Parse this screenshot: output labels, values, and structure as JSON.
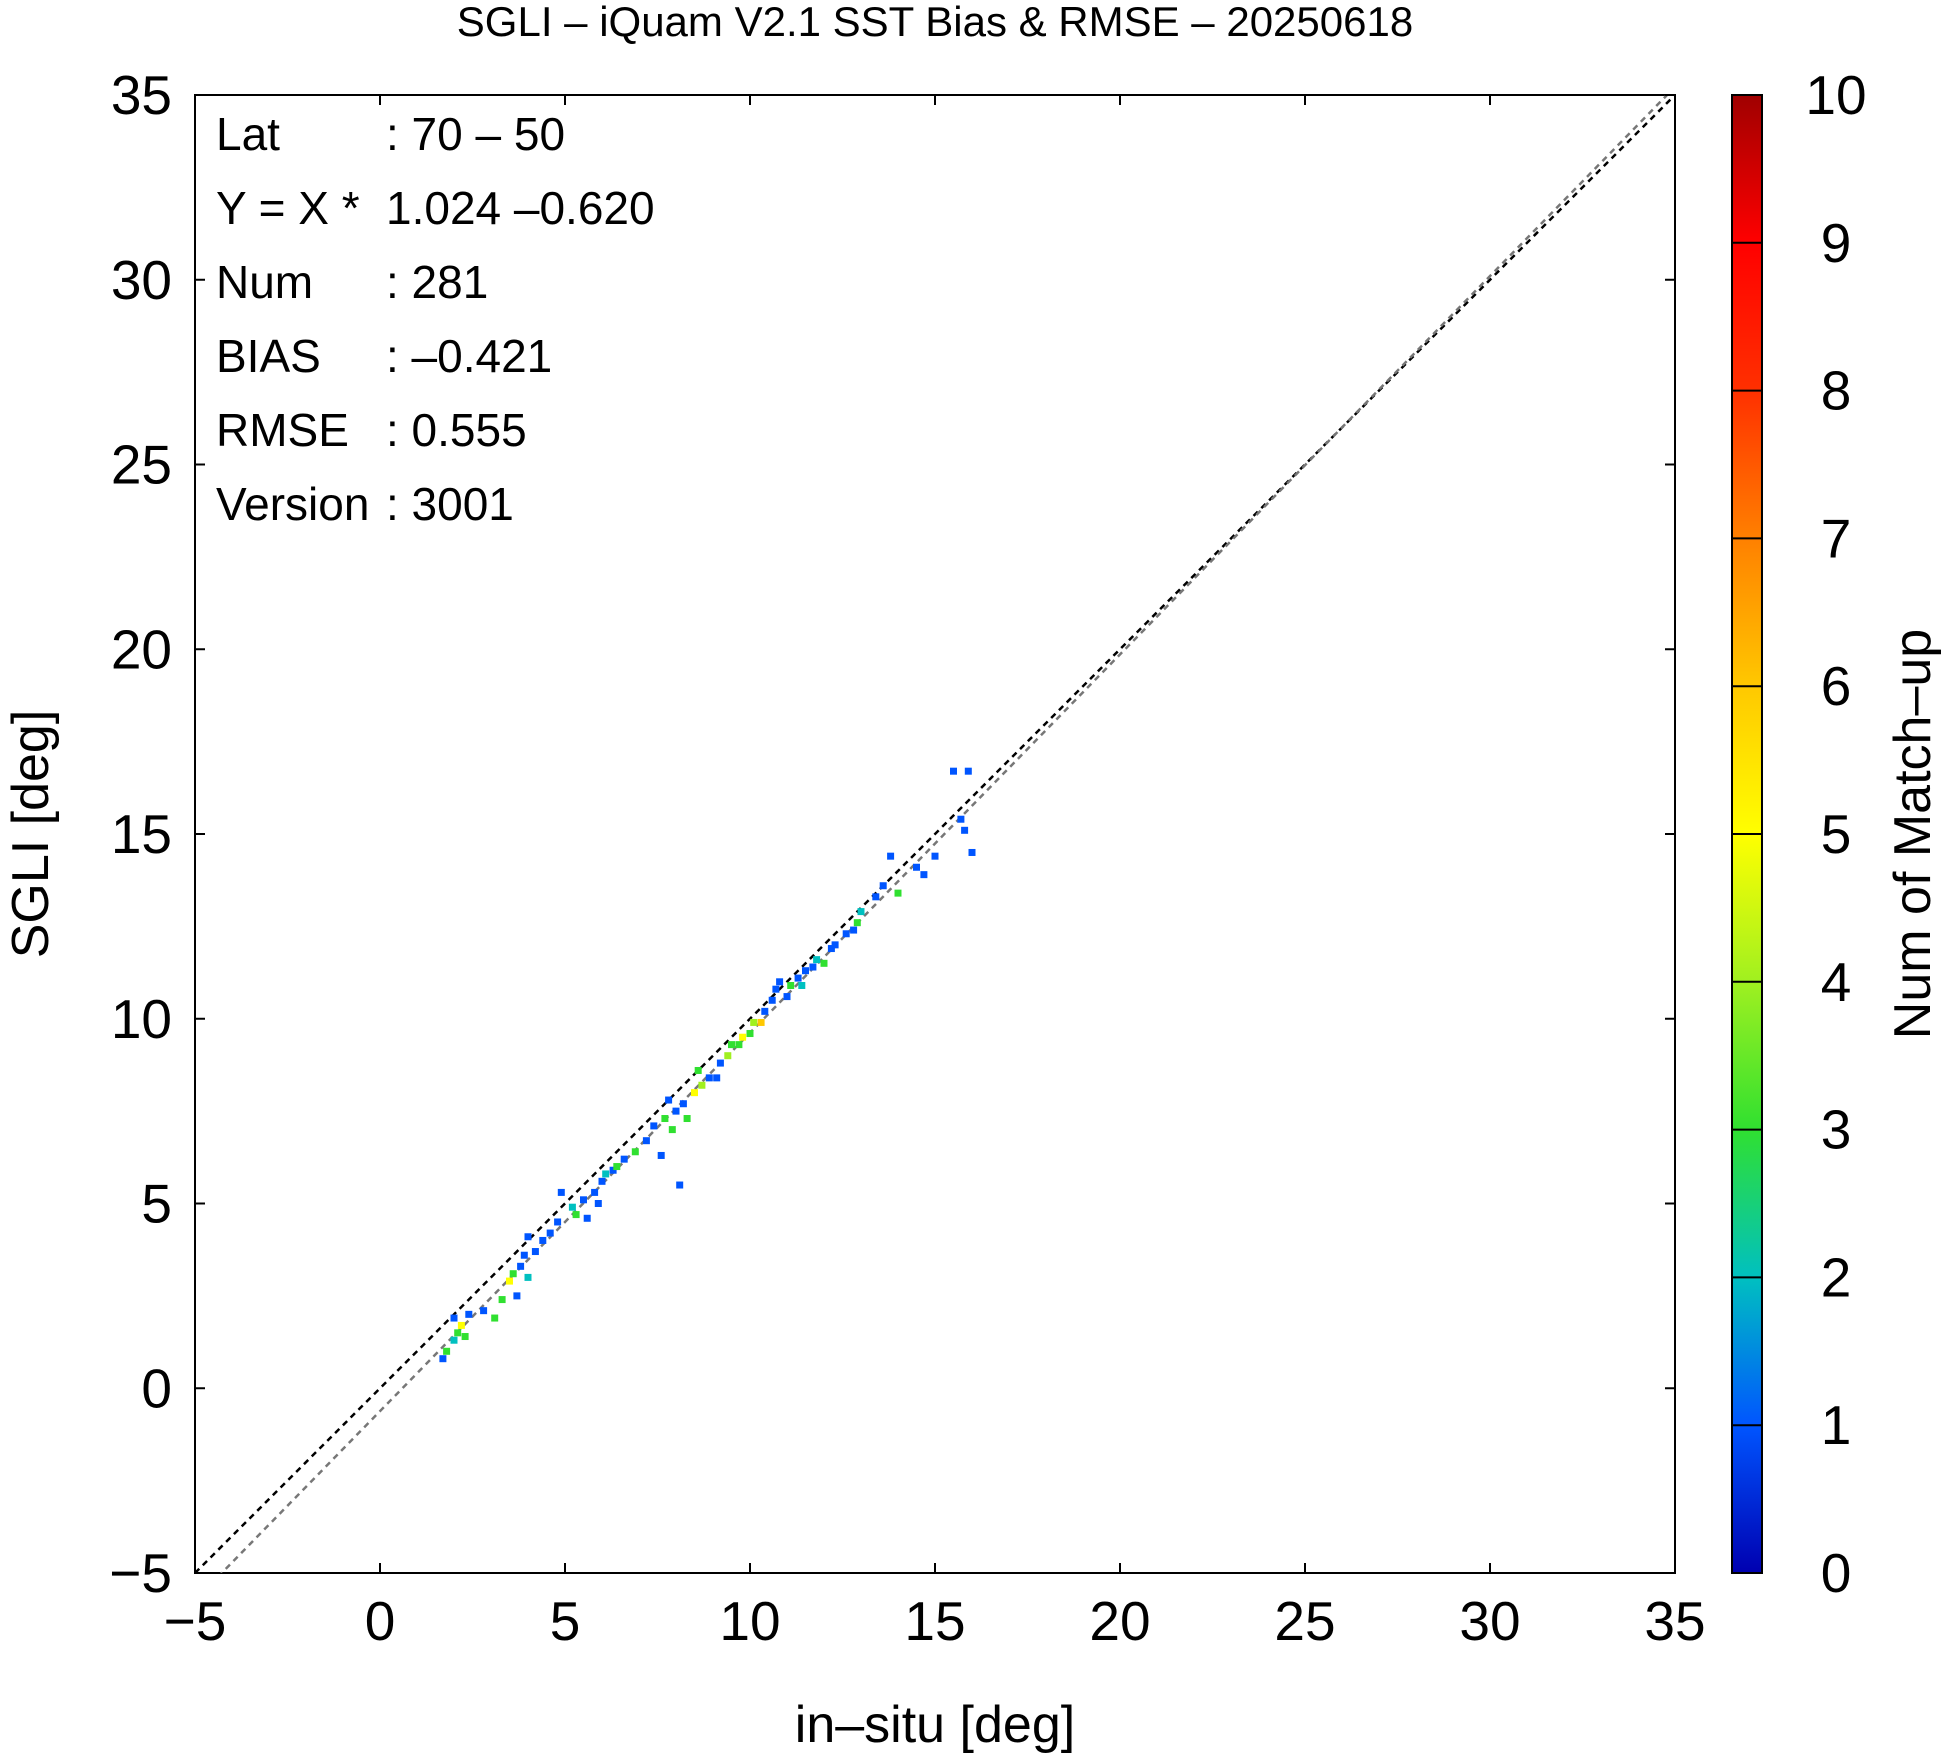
{
  "chart_data": {
    "type": "heatmap",
    "title": "SGLI – iQuam V2.1 SST Bias & RMSE  – 20250618",
    "xlabel": "in–situ [deg]",
    "ylabel": "SGLI [deg]",
    "xlim": [
      -5,
      35
    ],
    "ylim": [
      -5,
      35
    ],
    "xticks": [
      "−5",
      "0",
      "5",
      "10",
      "15",
      "20",
      "25",
      "30",
      "35"
    ],
    "yticks": [
      "−5",
      "0",
      "5",
      "10",
      "15",
      "20",
      "25",
      "30",
      "35"
    ],
    "grid": false,
    "colorbar": {
      "label": "Num of Match–up",
      "range": [
        0,
        10
      ],
      "ticks": [
        "0",
        "1",
        "2",
        "3",
        "4",
        "5",
        "6",
        "7",
        "8",
        "9",
        "10"
      ],
      "colors": [
        "#0000b0",
        "#0055ff",
        "#00c0c0",
        "#30e030",
        "#a0f020",
        "#ffff00",
        "#ffc800",
        "#ff8000",
        "#ff3000",
        "#ff0000",
        "#a00000"
      ]
    },
    "stats": [
      {
        "label": "Lat",
        "value": ": 70 – 50"
      },
      {
        "label": "Y = X *",
        "value": "1.024 –0.620"
      },
      {
        "label": "Num",
        "value": ": 281"
      },
      {
        "label": "BIAS",
        "value": ": –0.421"
      },
      {
        "label": "RMSE",
        "value": ": 0.555"
      },
      {
        "label": "Version",
        "value": ": 3001"
      }
    ],
    "lines": [
      {
        "kind": "one-to-one",
        "slope": 1,
        "intercept": 0,
        "color": "#000000"
      },
      {
        "kind": "regression",
        "slope": 1.024,
        "intercept": -0.62,
        "color": "#777777"
      }
    ],
    "points": [
      [
        1.7,
        0.8,
        1
      ],
      [
        1.8,
        1.0,
        3
      ],
      [
        2.0,
        1.3,
        2
      ],
      [
        2.0,
        1.9,
        1
      ],
      [
        2.1,
        1.5,
        3
      ],
      [
        2.2,
        1.7,
        5
      ],
      [
        2.3,
        1.4,
        3
      ],
      [
        2.4,
        2.0,
        1
      ],
      [
        2.8,
        2.1,
        1
      ],
      [
        3.1,
        1.9,
        3
      ],
      [
        3.3,
        2.4,
        3
      ],
      [
        3.5,
        2.9,
        5
      ],
      [
        3.6,
        3.1,
        3
      ],
      [
        3.7,
        2.5,
        1
      ],
      [
        3.8,
        3.3,
        1
      ],
      [
        3.9,
        3.6,
        1
      ],
      [
        4.0,
        3.0,
        2
      ],
      [
        4.0,
        4.1,
        1
      ],
      [
        4.2,
        3.7,
        1
      ],
      [
        4.4,
        4.0,
        1
      ],
      [
        4.6,
        4.2,
        1
      ],
      [
        4.8,
        4.5,
        1
      ],
      [
        4.9,
        5.3,
        1
      ],
      [
        5.2,
        4.9,
        2
      ],
      [
        5.3,
        4.7,
        3
      ],
      [
        5.5,
        5.1,
        1
      ],
      [
        5.6,
        4.6,
        1
      ],
      [
        5.8,
        5.3,
        1
      ],
      [
        5.9,
        5.0,
        1
      ],
      [
        6.0,
        5.6,
        1
      ],
      [
        6.1,
        5.8,
        2
      ],
      [
        6.3,
        5.9,
        1
      ],
      [
        6.4,
        6.0,
        3
      ],
      [
        6.6,
        6.2,
        1
      ],
      [
        6.9,
        6.4,
        3
      ],
      [
        7.2,
        6.7,
        1
      ],
      [
        7.4,
        7.1,
        1
      ],
      [
        7.6,
        6.3,
        1
      ],
      [
        7.7,
        7.3,
        3
      ],
      [
        7.8,
        7.8,
        1
      ],
      [
        7.9,
        7.0,
        3
      ],
      [
        8.0,
        7.5,
        1
      ],
      [
        8.1,
        5.5,
        1
      ],
      [
        8.2,
        7.7,
        1
      ],
      [
        8.3,
        7.3,
        3
      ],
      [
        8.5,
        8.0,
        5
      ],
      [
        8.6,
        8.6,
        3
      ],
      [
        8.7,
        8.2,
        4
      ],
      [
        8.9,
        8.4,
        1
      ],
      [
        9.1,
        8.4,
        1
      ],
      [
        9.2,
        8.8,
        1
      ],
      [
        9.4,
        9.0,
        4
      ],
      [
        9.5,
        9.3,
        3
      ],
      [
        9.7,
        9.3,
        3
      ],
      [
        9.8,
        9.5,
        5
      ],
      [
        10.0,
        9.6,
        3
      ],
      [
        10.1,
        9.9,
        4
      ],
      [
        10.3,
        9.9,
        6
      ],
      [
        10.4,
        10.2,
        1
      ],
      [
        10.6,
        10.5,
        1
      ],
      [
        10.7,
        10.8,
        1
      ],
      [
        10.8,
        11.0,
        1
      ],
      [
        11.0,
        10.6,
        1
      ],
      [
        11.1,
        10.9,
        3
      ],
      [
        11.3,
        11.1,
        1
      ],
      [
        11.4,
        10.9,
        2
      ],
      [
        11.5,
        11.3,
        1
      ],
      [
        11.7,
        11.4,
        1
      ],
      [
        11.8,
        11.6,
        2
      ],
      [
        12.0,
        11.5,
        3
      ],
      [
        12.2,
        11.9,
        1
      ],
      [
        12.3,
        12.0,
        1
      ],
      [
        12.6,
        12.3,
        1
      ],
      [
        12.8,
        12.4,
        1
      ],
      [
        12.9,
        12.6,
        3
      ],
      [
        13.0,
        12.9,
        2
      ],
      [
        13.4,
        13.3,
        1
      ],
      [
        13.6,
        13.6,
        1
      ],
      [
        13.8,
        14.4,
        1
      ],
      [
        14.0,
        13.4,
        3
      ],
      [
        14.5,
        14.1,
        1
      ],
      [
        14.7,
        13.9,
        1
      ],
      [
        15.0,
        14.4,
        1
      ],
      [
        15.5,
        16.7,
        1
      ],
      [
        15.7,
        15.4,
        1
      ],
      [
        15.8,
        15.1,
        1
      ],
      [
        15.9,
        16.7,
        1
      ],
      [
        16.0,
        14.5,
        1
      ]
    ]
  }
}
